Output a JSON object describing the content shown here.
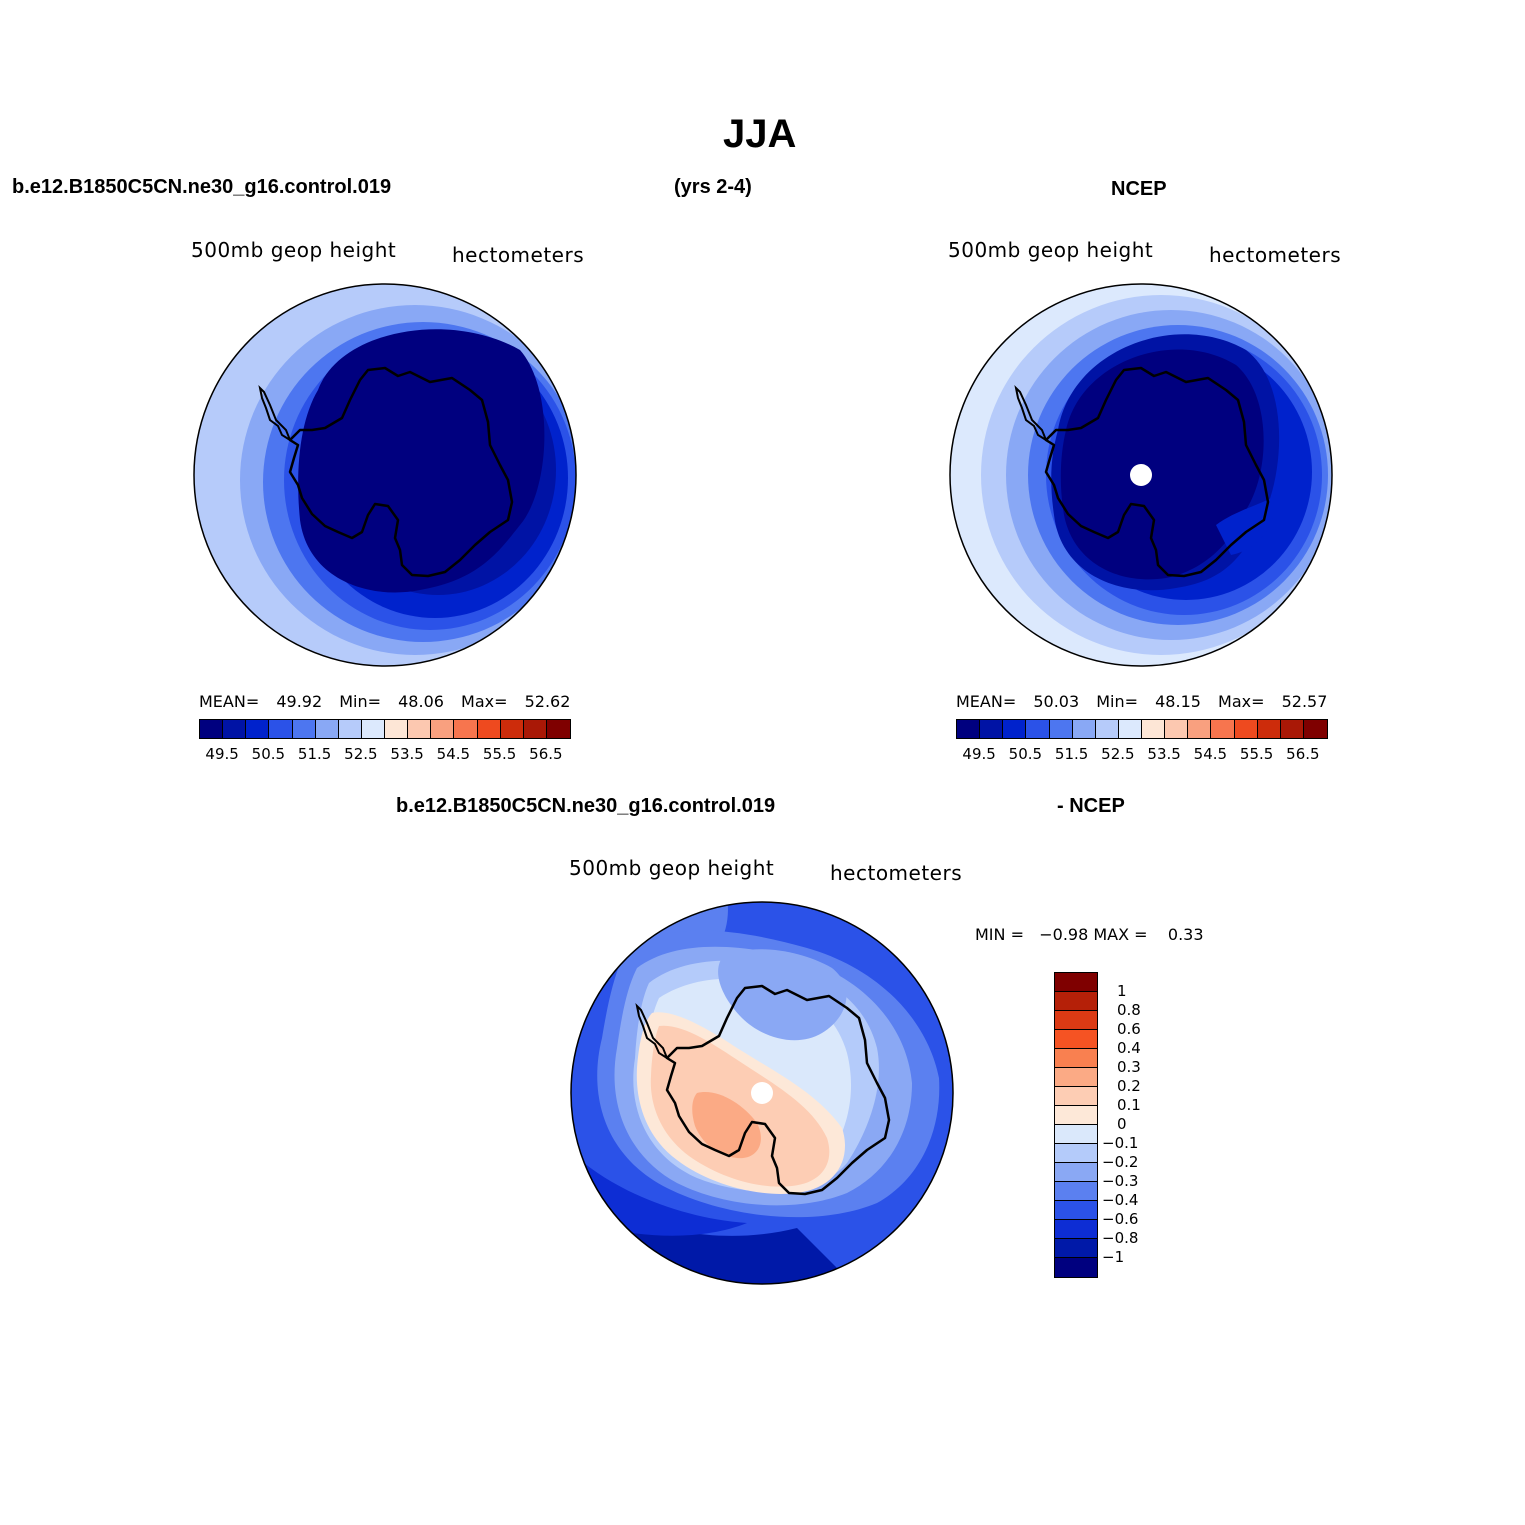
{
  "page": {
    "title": "JJA",
    "case_name": "b.e12.B1850C5CN.ne30_g16.control.019",
    "years": "(yrs 2-4)",
    "obs_name": "NCEP",
    "diff_case_name": "b.e12.B1850C5CN.ne30_g16.control.019",
    "diff_suffix": "- NCEP"
  },
  "panels": {
    "model": {
      "variable": "500mb  geop  height",
      "units": "hectometers",
      "mean_label": "MEAN=",
      "mean": "49.92",
      "min_label": "Min=",
      "min": "48.06",
      "max_label": "Max=",
      "max": "52.62"
    },
    "obs": {
      "variable": "500mb  geop  height",
      "units": "hectometers",
      "mean_label": "MEAN=",
      "mean": "50.03",
      "min_label": "Min=",
      "min": "48.15",
      "max_label": "Max=",
      "max": "52.57"
    },
    "diff": {
      "variable": "500mb  geop  height",
      "units": "hectometers",
      "minmax_text": "MIN =   −0.98 MAX =    0.33"
    }
  },
  "colorbars": {
    "absolute": {
      "colors": [
        "#00007f",
        "#0013a5",
        "#0022cc",
        "#2b52e8",
        "#4d76f0",
        "#89a8f5",
        "#b6cbfa",
        "#dce9fd",
        "#fde6d6",
        "#fcc8b0",
        "#f9a07f",
        "#f7754e",
        "#ee4a1f",
        "#cd2c0b",
        "#a91806",
        "#7f0000"
      ],
      "tick_labels": [
        "49.5",
        "50.5",
        "51.5",
        "52.5",
        "53.5",
        "54.5",
        "55.5",
        "56.5"
      ]
    },
    "difference": {
      "colors_top_to_bottom": [
        "#7f0000",
        "#b52008",
        "#dc3a14",
        "#f55323",
        "#f98050",
        "#fbaa85",
        "#fdcdb4",
        "#fde8d8",
        "#dae8fb",
        "#b4cbfa",
        "#8aa8f4",
        "#5b80f0",
        "#2b52e8",
        "#0d2dd4",
        "#0019a8",
        "#00007f"
      ],
      "tick_labels": [
        "1",
        "0.8",
        "0.6",
        "0.4",
        "0.3",
        "0.2",
        "0.1",
        "0",
        "−0.1",
        "−0.2",
        "−0.3",
        "−0.4",
        "−0.6",
        "−0.8",
        "−1"
      ]
    }
  }
}
